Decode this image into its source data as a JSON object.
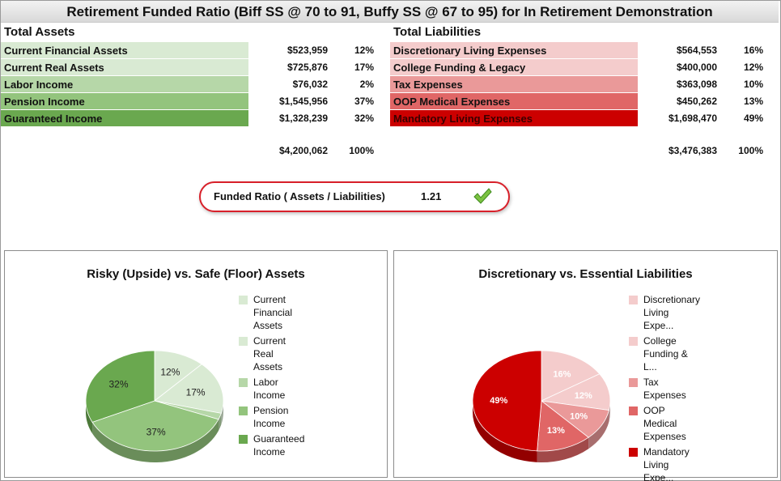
{
  "title": "Retirement Funded Ratio (Biff SS @ 70 to 91, Buffy SS @ 67 to 95) for In Retirement Demonstration",
  "assets": {
    "header": "Total Assets",
    "rows": [
      {
        "label": "Current Financial Assets",
        "amount": "$523,959",
        "pct": "12%",
        "color": "#d9ead3"
      },
      {
        "label": "Current Real Assets",
        "amount": "$725,876",
        "pct": "17%",
        "color": "#d9ead3"
      },
      {
        "label": "Labor Income",
        "amount": "$76,032",
        "pct": "2%",
        "color": "#b6d7a8"
      },
      {
        "label": "Pension Income",
        "amount": "$1,545,956",
        "pct": "37%",
        "color": "#93c47d"
      },
      {
        "label": "Guaranteed Income",
        "amount": "$1,328,239",
        "pct": "32%",
        "color": "#6aa84f"
      }
    ],
    "total_amount": "$4,200,062",
    "total_pct": "100%"
  },
  "liabilities": {
    "header": "Total Liabilities",
    "rows": [
      {
        "label": "Discretionary Living Expenses",
        "amount": "$564,553",
        "pct": "16%",
        "color": "#f4cccc"
      },
      {
        "label": "College Funding & Legacy",
        "amount": "$400,000",
        "pct": "12%",
        "color": "#f4cccc"
      },
      {
        "label": "Tax Expenses",
        "amount": "$363,098",
        "pct": "10%",
        "color": "#ea9999"
      },
      {
        "label": "OOP Medical Expenses",
        "amount": "$450,262",
        "pct": "13%",
        "color": "#e06666"
      },
      {
        "label": "Mandatory Living Expenses",
        "amount": "$1,698,470",
        "pct": "49%",
        "color": "#cc0000"
      }
    ],
    "total_amount": "$3,476,383",
    "total_pct": "100%"
  },
  "funded_ratio": {
    "label": "Funded Ratio ( Assets / Liabilities)",
    "value": "1.21",
    "status_icon": "check-icon",
    "status_color": "#7cc242"
  },
  "chart_data": [
    {
      "type": "pie",
      "title": "Risky (Upside) vs. Safe (Floor) Assets",
      "categories": [
        "Current Financial Assets",
        "Current Real Assets",
        "Labor Income",
        "Pension Income",
        "Guaranteed Income"
      ],
      "legend_labels": [
        [
          "Current",
          "Financial",
          "Assets"
        ],
        [
          "Current Real",
          "Assets"
        ],
        [
          "Labor Income"
        ],
        [
          "Pension",
          "Income"
        ],
        [
          "Guaranteed",
          "Income"
        ]
      ],
      "values": [
        12,
        17,
        2,
        37,
        32
      ],
      "data_labels": [
        "12%",
        "17%",
        "",
        "37%",
        "32%"
      ],
      "colors": [
        "#d9ead3",
        "#d9ead3",
        "#b6d7a8",
        "#93c47d",
        "#6aa84f"
      ],
      "label_color": "#222222",
      "legend": "right"
    },
    {
      "type": "pie",
      "title": "Discretionary vs. Essential Liabilities",
      "categories": [
        "Discretionary Living Expenses",
        "College Funding & Legacy",
        "Tax Expenses",
        "OOP Medical Expenses",
        "Mandatory Living Expenses"
      ],
      "legend_labels": [
        [
          "Discretionary",
          "Living Expe..."
        ],
        [
          "College",
          "Funding & L..."
        ],
        [
          "Tax",
          "Expenses"
        ],
        [
          "OOP Medical",
          "Expenses"
        ],
        [
          "Mandatory",
          "Living Expe..."
        ]
      ],
      "values": [
        16,
        12,
        10,
        13,
        49
      ],
      "data_labels": [
        "16%",
        "12%",
        "10%",
        "13%",
        "49%"
      ],
      "colors": [
        "#f4cccc",
        "#f4cccc",
        "#ea9999",
        "#e06666",
        "#cc0000"
      ],
      "label_color": "#ffffff",
      "legend": "right"
    }
  ]
}
